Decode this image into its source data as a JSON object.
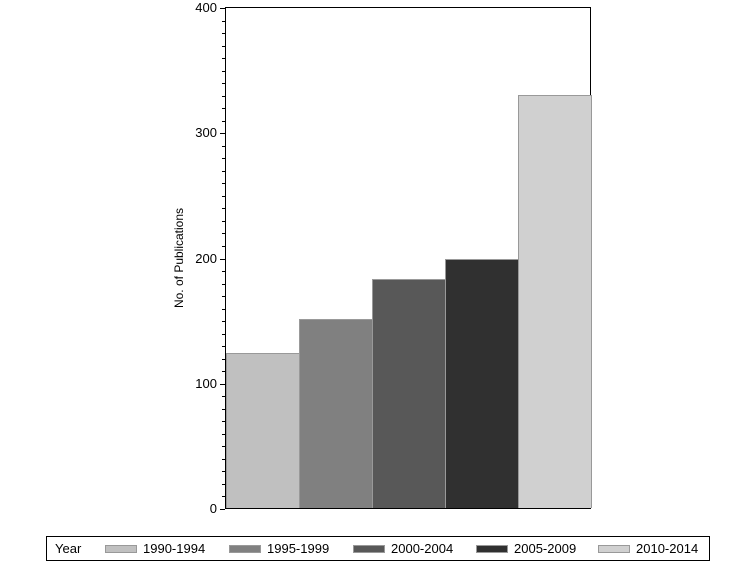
{
  "chart_data": {
    "type": "bar",
    "title": "",
    "xlabel": "",
    "ylabel": "No. of Publications",
    "ylim": [
      0,
      400
    ],
    "yticks": [
      0,
      100,
      200,
      300,
      400
    ],
    "grid": false,
    "legend_position": "bottom",
    "legend_title": "Year",
    "categories": [
      "1990-1994",
      "1995-1999",
      "2000-2004",
      "2005-2009",
      "2010-2014"
    ],
    "values": [
      124,
      151,
      183,
      199,
      330
    ],
    "colors": [
      "#c0c0c0",
      "#808080",
      "#585858",
      "#303030",
      "#d0d0d0"
    ]
  },
  "axis": {
    "ylabel": "No. of Publications",
    "ticks": [
      "0",
      "100",
      "200",
      "300",
      "400"
    ]
  },
  "legend": {
    "title": "Year",
    "items": [
      {
        "label": "1990-1994",
        "color": "#c0c0c0"
      },
      {
        "label": "1995-1999",
        "color": "#808080"
      },
      {
        "label": "2000-2004",
        "color": "#585858"
      },
      {
        "label": "2005-2009",
        "color": "#303030"
      },
      {
        "label": "2010-2014",
        "color": "#d0d0d0"
      }
    ]
  }
}
